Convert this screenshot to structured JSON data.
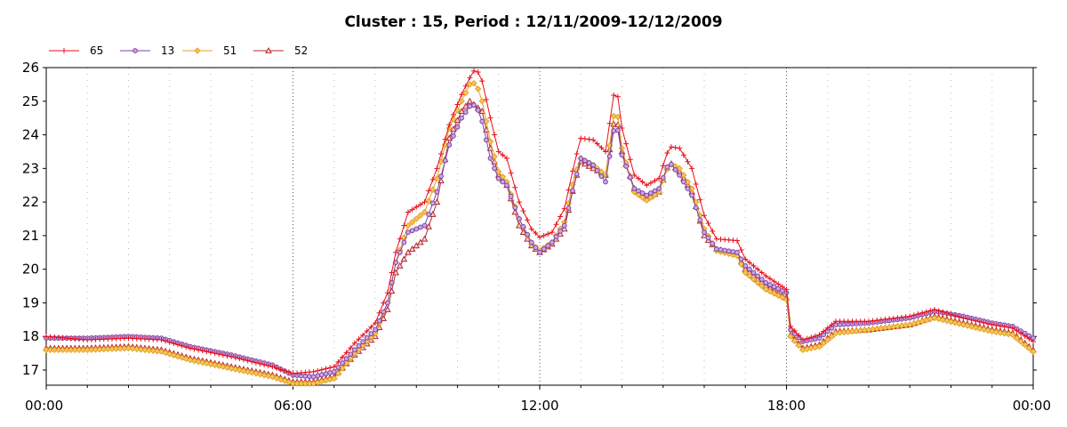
{
  "chart_data": {
    "type": "line",
    "title": "Cluster : 15, Period : 12/11/2009-12/12/2009",
    "xlabel": "",
    "ylabel": "",
    "x_ticks": [
      "00:00",
      "06:00",
      "12:00",
      "18:00",
      "00:00"
    ],
    "y_ticks": [
      "17",
      "18",
      "19",
      "20",
      "21",
      "22",
      "23",
      "24",
      "25",
      "26"
    ],
    "xlim_hours": [
      0,
      24
    ],
    "ylim": [
      16.55,
      26.0
    ],
    "grid": "dotted vertical",
    "legend_position": "top-left",
    "colors": {
      "s65": "#e8101c",
      "s13": "#8040a0",
      "s51": "#e8a020",
      "s52": "#b02830"
    },
    "series": [
      {
        "name": "65",
        "marker": "plus",
        "points": [
          [
            0,
            18.0
          ],
          [
            1,
            17.9
          ],
          [
            2,
            17.95
          ],
          [
            2.8,
            17.9
          ],
          [
            3.5,
            17.65
          ],
          [
            4.5,
            17.4
          ],
          [
            5.5,
            17.1
          ],
          [
            6,
            16.9
          ],
          [
            6.5,
            16.95
          ],
          [
            7,
            17.1
          ],
          [
            7.5,
            17.8
          ],
          [
            8,
            18.4
          ],
          [
            8.3,
            19.3
          ],
          [
            8.5,
            20.5
          ],
          [
            8.8,
            21.7
          ],
          [
            9.2,
            22.0
          ],
          [
            9.5,
            23.0
          ],
          [
            9.8,
            24.3
          ],
          [
            10.1,
            25.2
          ],
          [
            10.3,
            25.7
          ],
          [
            10.45,
            26.0
          ],
          [
            10.6,
            25.6
          ],
          [
            10.8,
            24.5
          ],
          [
            11.0,
            23.5
          ],
          [
            11.2,
            23.3
          ],
          [
            11.5,
            22.0
          ],
          [
            11.8,
            21.2
          ],
          [
            12.0,
            20.95
          ],
          [
            12.3,
            21.1
          ],
          [
            12.6,
            21.8
          ],
          [
            12.85,
            23.2
          ],
          [
            13.0,
            23.9
          ],
          [
            13.3,
            23.85
          ],
          [
            13.6,
            23.5
          ],
          [
            13.85,
            25.6
          ],
          [
            14.0,
            24.2
          ],
          [
            14.3,
            22.8
          ],
          [
            14.6,
            22.5
          ],
          [
            14.9,
            22.7
          ],
          [
            15.15,
            23.65
          ],
          [
            15.4,
            23.6
          ],
          [
            15.7,
            23.0
          ],
          [
            16.0,
            21.6
          ],
          [
            16.3,
            20.9
          ],
          [
            16.8,
            20.85
          ],
          [
            17.0,
            20.3
          ],
          [
            17.5,
            19.8
          ],
          [
            18.0,
            19.4
          ],
          [
            18.1,
            18.3
          ],
          [
            18.4,
            17.9
          ],
          [
            18.8,
            18.05
          ],
          [
            19.2,
            18.45
          ],
          [
            20.0,
            18.45
          ],
          [
            21.0,
            18.6
          ],
          [
            21.6,
            18.8
          ],
          [
            22.3,
            18.55
          ],
          [
            23.0,
            18.35
          ],
          [
            23.5,
            18.25
          ],
          [
            24.0,
            17.85
          ]
        ]
      },
      {
        "name": "13",
        "marker": "circle",
        "points": [
          [
            0,
            17.95
          ],
          [
            1,
            17.95
          ],
          [
            2,
            18.0
          ],
          [
            2.8,
            17.95
          ],
          [
            3.5,
            17.7
          ],
          [
            4.5,
            17.45
          ],
          [
            5.5,
            17.15
          ],
          [
            6,
            16.85
          ],
          [
            6.5,
            16.8
          ],
          [
            7,
            16.95
          ],
          [
            7.5,
            17.6
          ],
          [
            8,
            18.2
          ],
          [
            8.3,
            19.0
          ],
          [
            8.5,
            20.2
          ],
          [
            8.8,
            21.1
          ],
          [
            9.2,
            21.3
          ],
          [
            9.5,
            22.3
          ],
          [
            9.8,
            23.7
          ],
          [
            10.1,
            24.5
          ],
          [
            10.3,
            24.85
          ],
          [
            10.45,
            24.9
          ],
          [
            10.6,
            24.4
          ],
          [
            10.8,
            23.3
          ],
          [
            11.0,
            22.7
          ],
          [
            11.2,
            22.5
          ],
          [
            11.5,
            21.5
          ],
          [
            11.8,
            20.8
          ],
          [
            12.0,
            20.5
          ],
          [
            12.3,
            20.8
          ],
          [
            12.6,
            21.3
          ],
          [
            12.85,
            22.6
          ],
          [
            13.0,
            23.3
          ],
          [
            13.3,
            23.1
          ],
          [
            13.6,
            22.6
          ],
          [
            13.85,
            24.5
          ],
          [
            14.0,
            23.4
          ],
          [
            14.3,
            22.4
          ],
          [
            14.6,
            22.2
          ],
          [
            14.9,
            22.4
          ],
          [
            15.15,
            23.2
          ],
          [
            15.4,
            22.8
          ],
          [
            15.7,
            22.2
          ],
          [
            16.0,
            21.1
          ],
          [
            16.3,
            20.6
          ],
          [
            16.8,
            20.5
          ],
          [
            17.0,
            20.1
          ],
          [
            17.5,
            19.6
          ],
          [
            18.0,
            19.3
          ],
          [
            18.1,
            18.2
          ],
          [
            18.4,
            17.85
          ],
          [
            18.8,
            17.95
          ],
          [
            19.2,
            18.35
          ],
          [
            20.0,
            18.4
          ],
          [
            21.0,
            18.55
          ],
          [
            21.6,
            18.75
          ],
          [
            22.3,
            18.6
          ],
          [
            23.0,
            18.4
          ],
          [
            23.5,
            18.3
          ],
          [
            24.0,
            17.95
          ]
        ]
      },
      {
        "name": "51",
        "marker": "diamond",
        "points": [
          [
            0,
            17.6
          ],
          [
            1,
            17.6
          ],
          [
            2,
            17.65
          ],
          [
            2.8,
            17.55
          ],
          [
            3.5,
            17.3
          ],
          [
            4.5,
            17.05
          ],
          [
            5.5,
            16.8
          ],
          [
            6,
            16.6
          ],
          [
            6.5,
            16.6
          ],
          [
            7,
            16.75
          ],
          [
            7.5,
            17.5
          ],
          [
            8,
            18.1
          ],
          [
            8.3,
            19.0
          ],
          [
            8.5,
            20.2
          ],
          [
            8.8,
            21.3
          ],
          [
            9.2,
            21.7
          ],
          [
            9.5,
            22.7
          ],
          [
            9.8,
            24.2
          ],
          [
            10.1,
            25.0
          ],
          [
            10.3,
            25.5
          ],
          [
            10.45,
            25.55
          ],
          [
            10.6,
            25.0
          ],
          [
            10.8,
            23.8
          ],
          [
            11.0,
            22.9
          ],
          [
            11.2,
            22.6
          ],
          [
            11.5,
            21.5
          ],
          [
            11.8,
            20.75
          ],
          [
            12.0,
            20.55
          ],
          [
            12.3,
            20.8
          ],
          [
            12.6,
            21.4
          ],
          [
            12.85,
            22.8
          ],
          [
            13.0,
            23.3
          ],
          [
            13.3,
            23.1
          ],
          [
            13.6,
            22.8
          ],
          [
            13.85,
            25.0
          ],
          [
            14.0,
            23.6
          ],
          [
            14.3,
            22.3
          ],
          [
            14.6,
            22.05
          ],
          [
            14.9,
            22.3
          ],
          [
            15.15,
            23.15
          ],
          [
            15.4,
            23.0
          ],
          [
            15.7,
            22.4
          ],
          [
            16.0,
            21.2
          ],
          [
            16.3,
            20.55
          ],
          [
            16.8,
            20.4
          ],
          [
            17.0,
            19.9
          ],
          [
            17.5,
            19.4
          ],
          [
            18.0,
            19.1
          ],
          [
            18.1,
            18.0
          ],
          [
            18.4,
            17.6
          ],
          [
            18.8,
            17.7
          ],
          [
            19.2,
            18.1
          ],
          [
            20.0,
            18.2
          ],
          [
            21.0,
            18.35
          ],
          [
            21.6,
            18.55
          ],
          [
            22.3,
            18.35
          ],
          [
            23.0,
            18.15
          ],
          [
            23.5,
            18.05
          ],
          [
            24.0,
            17.55
          ]
        ]
      },
      {
        "name": "52",
        "marker": "triangle",
        "points": [
          [
            0,
            17.65
          ],
          [
            1,
            17.65
          ],
          [
            2,
            17.7
          ],
          [
            2.8,
            17.6
          ],
          [
            3.5,
            17.35
          ],
          [
            4.5,
            17.1
          ],
          [
            5.5,
            16.85
          ],
          [
            6,
            16.65
          ],
          [
            6.5,
            16.65
          ],
          [
            7,
            16.8
          ],
          [
            7.5,
            17.45
          ],
          [
            8,
            18.0
          ],
          [
            8.3,
            18.8
          ],
          [
            8.5,
            19.9
          ],
          [
            8.8,
            20.5
          ],
          [
            9.2,
            20.9
          ],
          [
            9.5,
            22.0
          ],
          [
            9.8,
            23.9
          ],
          [
            10.1,
            24.7
          ],
          [
            10.3,
            25.0
          ],
          [
            10.45,
            24.85
          ],
          [
            10.6,
            24.7
          ],
          [
            10.8,
            23.6
          ],
          [
            11.0,
            22.8
          ],
          [
            11.2,
            22.5
          ],
          [
            11.5,
            21.3
          ],
          [
            11.8,
            20.7
          ],
          [
            12.0,
            20.5
          ],
          [
            12.3,
            20.75
          ],
          [
            12.6,
            21.2
          ],
          [
            12.85,
            22.6
          ],
          [
            13.0,
            23.2
          ],
          [
            13.3,
            23.0
          ],
          [
            13.6,
            22.8
          ],
          [
            13.85,
            24.7
          ],
          [
            14.0,
            23.5
          ],
          [
            14.3,
            22.4
          ],
          [
            14.6,
            22.1
          ],
          [
            14.9,
            22.3
          ],
          [
            15.15,
            23.2
          ],
          [
            15.4,
            22.9
          ],
          [
            15.7,
            22.3
          ],
          [
            16.0,
            21.0
          ],
          [
            16.3,
            20.6
          ],
          [
            16.8,
            20.45
          ],
          [
            17.0,
            20.0
          ],
          [
            17.5,
            19.5
          ],
          [
            18.0,
            19.15
          ],
          [
            18.1,
            18.05
          ],
          [
            18.4,
            17.65
          ],
          [
            18.8,
            17.75
          ],
          [
            19.2,
            18.15
          ],
          [
            20.0,
            18.2
          ],
          [
            21.0,
            18.35
          ],
          [
            21.6,
            18.6
          ],
          [
            22.3,
            18.4
          ],
          [
            23.0,
            18.2
          ],
          [
            23.5,
            18.1
          ],
          [
            24.0,
            17.6
          ]
        ]
      }
    ]
  }
}
